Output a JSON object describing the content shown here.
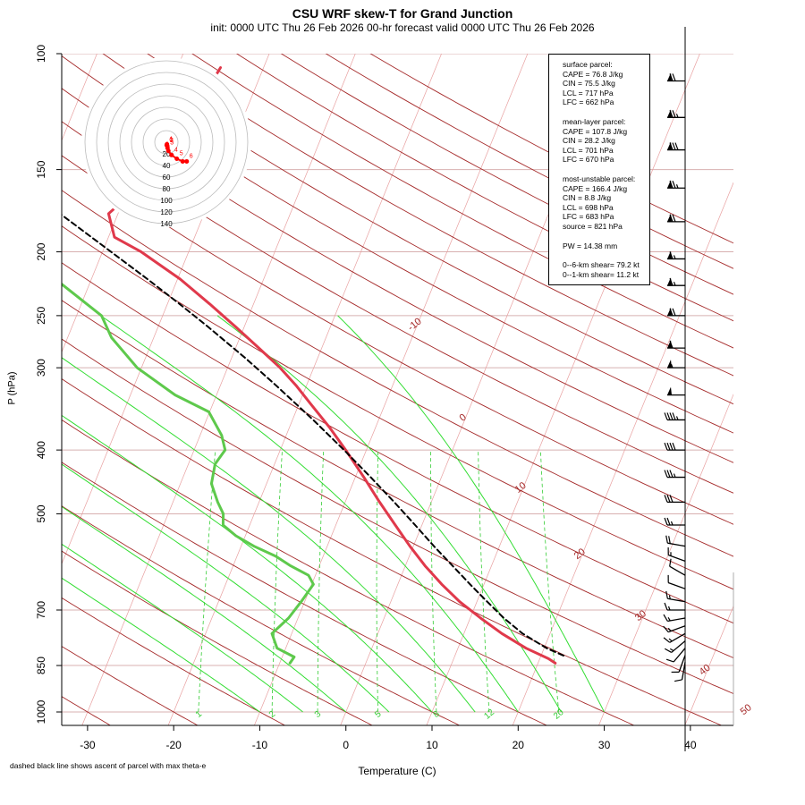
{
  "chart_data": {
    "type": "line",
    "chart_kind": "skew-T log-p diagram",
    "title": "CSU WRF skew-T for Grand Junction",
    "subtitle": "init: 0000 UTC Thu 26 Feb 2026     00-hr forecast valid 0000 UTC Thu 26 Feb 2026",
    "xlabel": "Temperature (C)",
    "ylabel": "P (hPa)",
    "footnote": "dashed black line shows ascent of parcel with max theta-e",
    "x_ticks": [
      "-30",
      "-20",
      "-10",
      "0",
      "10",
      "20",
      "30",
      "40"
    ],
    "y_ticks": [
      "100",
      "150",
      "200",
      "250",
      "300",
      "400",
      "500",
      "700",
      "850",
      "1000"
    ],
    "y_scale": "log",
    "xlim": [
      -33,
      45
    ],
    "ylim": [
      1000,
      100
    ],
    "isotherm_labels": [
      "-10",
      "0",
      "10",
      "20",
      "30",
      "40",
      "50"
    ],
    "mixing_ratio_labels": [
      "1",
      "2",
      "3",
      "5",
      "8",
      "12",
      "20"
    ],
    "series": [
      {
        "name": "temperature",
        "color": "#e0394b",
        "pressure": [
          843,
          830,
          800,
          760,
          720,
          680,
          640,
          600,
          560,
          520,
          480,
          440,
          400,
          370,
          340,
          320,
          300,
          280,
          260,
          240,
          220,
          200,
          190,
          175,
          160,
          150,
          140,
          130,
          120,
          110,
          105
        ],
        "temp": [
          22.0,
          21.0,
          17.9,
          14.4,
          11.2,
          8.0,
          5.1,
          2.3,
          -0.4,
          -3.1,
          -6.0,
          -9.0,
          -12.4,
          -15.3,
          -18.7,
          -21.1,
          -23.9,
          -27.3,
          -31.0,
          -35.1,
          -39.7,
          -45.5,
          -49.3,
          -51.1,
          -49.0,
          -47.1,
          -46.0,
          -45.9,
          -45.6,
          -45.3,
          -45.0
        ]
      },
      {
        "name": "dewpoint",
        "color": "#5ec94c",
        "pressure": [
          843,
          825,
          800,
          760,
          720,
          680,
          640,
          620,
          600,
          580,
          560,
          540,
          520,
          500,
          480,
          450,
          420,
          400,
          380,
          350,
          330,
          300,
          270,
          250,
          220,
          200,
          180,
          170
        ],
        "temp": [
          -8.8,
          -8.6,
          -11.0,
          -12.3,
          -11.1,
          -10.4,
          -9.8,
          -10.8,
          -13.3,
          -15.5,
          -18.5,
          -21.1,
          -23.1,
          -23.6,
          -24.8,
          -26.4,
          -26.9,
          -26.4,
          -27.5,
          -30.1,
          -34.8,
          -40.5,
          -44.9,
          -47.1,
          -54.2,
          -58.9,
          -63.8,
          -66.5
        ]
      },
      {
        "name": "parcel",
        "color": "#000000",
        "dashed": true,
        "pressure": [
          821,
          800,
          760,
          720,
          680,
          640,
          600,
          560,
          520,
          480,
          440,
          400,
          360,
          320,
          290,
          260,
          240,
          220,
          200,
          180,
          160,
          140,
          130,
          120,
          110,
          105
        ],
        "temp": [
          22.6,
          20.3,
          16.8,
          13.9,
          11.2,
          8.4,
          5.5,
          2.4,
          -0.8,
          -4.3,
          -8.2,
          -12.6,
          -17.6,
          -23.4,
          -28.4,
          -34.2,
          -38.6,
          -43.5,
          -49.0,
          -55.1,
          -62.0,
          -69.7,
          -74.0,
          -78.6,
          -83.7,
          -86.4
        ]
      }
    ],
    "hodograph": {
      "rings": [
        "20",
        "40",
        "60",
        "80",
        "100",
        "120",
        "140"
      ],
      "height_labels": [
        "0",
        "1",
        "2",
        "3",
        "4",
        "5",
        "6"
      ],
      "u_kt": [
        0.5,
        1.0,
        1.6,
        2.0,
        3.5,
        9.0,
        18.0,
        28.0,
        35.0
      ],
      "v_kt": [
        -5.0,
        -3.5,
        -6.5,
        -10.0,
        -15.0,
        -22.0,
        -28.5,
        -33.0,
        -33.0
      ]
    },
    "wind_barbs": {
      "pressure": [
        110,
        125,
        140,
        160,
        180,
        205,
        225,
        250,
        280,
        300,
        330,
        360,
        400,
        440,
        480,
        520,
        560,
        590,
        620,
        650,
        680,
        700,
        720,
        740,
        760,
        780,
        800,
        820,
        840
      ],
      "speed_kt": [
        70,
        75,
        80,
        75,
        70,
        65,
        65,
        70,
        60,
        55,
        50,
        45,
        40,
        35,
        30,
        25,
        20,
        15,
        10,
        10,
        15,
        15,
        15,
        15,
        15,
        15,
        10,
        10,
        10
      ],
      "direction_deg": [
        270,
        270,
        270,
        270,
        270,
        270,
        270,
        270,
        270,
        270,
        270,
        270,
        270,
        270,
        270,
        270,
        280,
        290,
        300,
        290,
        280,
        270,
        260,
        250,
        240,
        230,
        220,
        200,
        190
      ]
    }
  },
  "infobox": {
    "lines": [
      "surface parcel:",
      "CAPE = 76.8 J/kg",
      "CIN = 75.5 J/kg",
      "LCL = 717 hPa",
      "LFC = 662 hPa",
      "",
      "mean-layer parcel:",
      "CAPE = 107.8 J/kg",
      "CIN = 28.2 J/kg",
      "LCL = 701 hPa",
      "LFC = 670 hPa",
      "",
      "most-unstable parcel:",
      "CAPE = 166.4 J/kg",
      "CIN = 8.8 J/kg",
      "LCL = 698 hPa",
      "LFC = 683 hPa",
      "source = 821 hPa",
      "",
      "PW =  14.38 mm",
      "",
      "0--6-km shear= 79.2 kt",
      "0--1-km shear= 11.2 kt"
    ]
  },
  "colors": {
    "isotherm": "#e8a0a0",
    "dry_adiabat": "#a52a2a",
    "moist_adiabat": "#33dd33",
    "mixing_ratio": "#33cc33",
    "isobar": "#d8b0b0",
    "temperature": "#e0394b",
    "dewpoint": "#5ec94c",
    "hodograph": "#ff0000"
  }
}
